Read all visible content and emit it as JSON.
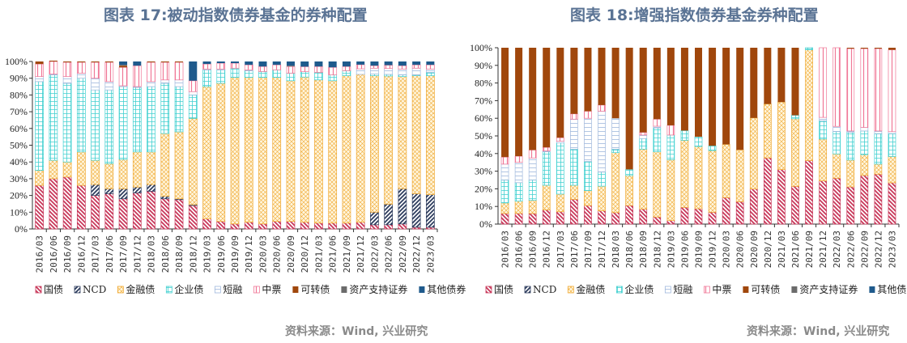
{
  "chart_data": [
    {
      "type": "bar",
      "stacked": true,
      "title": "图表 17:被动指数债券基金的券种配置",
      "source": "资料来源：Wind, 兴业研究",
      "ylim": [
        0,
        100
      ],
      "yticks": [
        "0%",
        "10%",
        "20%",
        "30%",
        "40%",
        "50%",
        "60%",
        "70%",
        "80%",
        "90%",
        "100%"
      ],
      "legend_position": "bottom",
      "categories": [
        "2016/03",
        "2016/06",
        "2016/09",
        "2016/12",
        "2017/03",
        "2017/06",
        "2017/09",
        "2017/12",
        "2018/03",
        "2018/06",
        "2018/09",
        "2018/12",
        "2019/03",
        "2019/06",
        "2019/09",
        "2019/12",
        "2020/03",
        "2020/06",
        "2020/09",
        "2020/12",
        "2021/03",
        "2021/06",
        "2021/09",
        "2021/12",
        "2022/03",
        "2022/06",
        "2022/09",
        "2022/12",
        "2023/03"
      ],
      "series": [
        {
          "name": "国债",
          "values": [
            26,
            30,
            31,
            26,
            20,
            21,
            18,
            21.5,
            22.5,
            18,
            17.5,
            14,
            6,
            4.5,
            3,
            4,
            3,
            4.5,
            4.5,
            4,
            3.5,
            3.5,
            3.5,
            4,
            2.5,
            2.5,
            3,
            1,
            1
          ]
        },
        {
          "name": "NCD",
          "values": [
            0,
            0,
            0,
            0,
            6.5,
            3,
            6,
            3.5,
            4,
            1.5,
            0.5,
            0.5,
            0,
            0,
            0,
            0,
            0,
            0,
            0,
            0,
            0,
            0,
            0,
            0,
            7.5,
            12.3,
            21,
            20,
            19.5
          ]
        },
        {
          "name": "金融债",
          "values": [
            9,
            11,
            9,
            20,
            14.5,
            15,
            17.5,
            21,
            19.5,
            37.5,
            40,
            51.5,
            79,
            82.5,
            87.5,
            86.5,
            87.5,
            86,
            84,
            86.7,
            85.5,
            85,
            88,
            88.3,
            81.5,
            76.5,
            67,
            70.5,
            71
          ]
        },
        {
          "name": "企业债",
          "values": [
            53,
            51,
            47,
            44,
            42,
            44,
            43.5,
            38.5,
            39,
            30,
            27,
            14,
            10,
            8,
            5.5,
            4,
            3.5,
            4.5,
            4.5,
            3.2,
            4.5,
            3.5,
            3,
            0,
            1,
            1,
            1,
            0.5,
            2
          ]
        },
        {
          "name": "短融",
          "values": [
            3,
            0.5,
            4,
            3,
            7,
            5,
            0.5,
            0.5,
            3,
            2,
            4,
            2,
            0.5,
            0.5,
            0,
            0.5,
            0,
            0,
            0,
            0,
            0,
            0,
            0,
            3.3,
            3.5,
            3.5,
            3.5,
            4,
            2
          ]
        },
        {
          "name": "中票",
          "values": [
            7.5,
            7.5,
            8.5,
            6.5,
            9.5,
            11.5,
            11,
            12.5,
            11.5,
            10.5,
            10.5,
            6.5,
            3,
            3.5,
            3,
            3,
            3,
            3,
            4,
            3,
            3.5,
            4.5,
            2.5,
            2.5,
            1.5,
            2,
            2,
            2,
            2.5
          ]
        },
        {
          "name": "可转债",
          "values": [
            1.5,
            0.5,
            0.5,
            0.5,
            0.5,
            0.5,
            1,
            0,
            0.5,
            0.5,
            0.5,
            0,
            0,
            0,
            0,
            0,
            0,
            0,
            0,
            0,
            0,
            0,
            0,
            0,
            0,
            0,
            0,
            0,
            0
          ]
        },
        {
          "name": "资产支持证券",
          "values": [
            0,
            0,
            0,
            0,
            0,
            0,
            0.5,
            0,
            0,
            0,
            0,
            0,
            0,
            0,
            0,
            0,
            0,
            0,
            0.5,
            0,
            0,
            0,
            0,
            0,
            0,
            0,
            0,
            0,
            0
          ]
        },
        {
          "name": "其他债券",
          "values": [
            0,
            0,
            0,
            0,
            0,
            0,
            2,
            2.5,
            0,
            0,
            0,
            11.5,
            1.5,
            1,
            1,
            2,
            3,
            2,
            2.5,
            3.1,
            3,
            3.5,
            3,
            1.9,
            2.5,
            2.2,
            2.5,
            2,
            2
          ]
        }
      ]
    },
    {
      "type": "bar",
      "stacked": true,
      "title": "图表 18:增强指数债券基金券种配置",
      "source": "资料来源：Wind, 兴业研究",
      "ylim": [
        0,
        100
      ],
      "yticks": [
        "0%",
        "10%",
        "20%",
        "30%",
        "40%",
        "50%",
        "60%",
        "70%",
        "80%",
        "90%",
        "100%"
      ],
      "legend_position": "bottom",
      "categories": [
        "2016/03",
        "2016/06",
        "2016/09",
        "2016/12",
        "2017/03",
        "2017/06",
        "2017/09",
        "2017/12",
        "2018/03",
        "2018/06",
        "2018/09",
        "2018/12",
        "2019/03",
        "2019/06",
        "2019/09",
        "2019/12",
        "2020/03",
        "2020/06",
        "2020/09",
        "2020/12",
        "2021/03",
        "2021/06",
        "2021/09",
        "2021/12",
        "2022/03",
        "2022/06",
        "2022/09",
        "2022/12",
        "2023/03"
      ],
      "series": [
        {
          "name": "国债",
          "values": [
            6,
            6,
            6,
            8,
            7,
            14,
            10.5,
            7.5,
            6.5,
            10.5,
            8.5,
            4,
            2,
            9.5,
            8.7,
            6.7,
            15,
            12.7,
            19.9,
            37.5,
            30.9,
            21.4,
            36,
            24.5,
            26,
            21.1,
            27.6,
            28.3,
            23.4
          ]
        },
        {
          "name": "NCD",
          "values": [
            0,
            0,
            0,
            0,
            0,
            0,
            0,
            0,
            0,
            0,
            0,
            0,
            0,
            0,
            0,
            0,
            0,
            0,
            0,
            0,
            0,
            0,
            0,
            0,
            0,
            0,
            0,
            0,
            0
          ]
        },
        {
          "name": "金融债",
          "values": [
            6,
            7,
            7.5,
            14,
            10,
            8,
            8.5,
            14,
            34,
            17,
            34,
            37,
            34.5,
            38,
            35.3,
            35,
            30.2,
            29.4,
            40.3,
            30.6,
            38.3,
            38.3,
            62.8,
            23.7,
            13.8,
            15.2,
            11.8,
            5.7,
            14.9
          ]
        },
        {
          "name": "企业债",
          "values": [
            13,
            10.5,
            11.5,
            19,
            29,
            20.5,
            16.5,
            8,
            2,
            3.5,
            6,
            13.5,
            14,
            5.5,
            5.5,
            2.7,
            0,
            0,
            0,
            0,
            0,
            2,
            1.2,
            10.4,
            12.7,
            15.7,
            13.4,
            17.3,
            13
          ]
        },
        {
          "name": "短融",
          "values": [
            9,
            11.5,
            12.5,
            0.5,
            1,
            17,
            24.5,
            34.5,
            17.5,
            0,
            2,
            1,
            0,
            0,
            0,
            0,
            0,
            0,
            0,
            0,
            0,
            0,
            0,
            1.9,
            2.9,
            0.8,
            2,
            1.5,
            1.1
          ]
        },
        {
          "name": "中票",
          "values": [
            4,
            3.5,
            4.5,
            2,
            2,
            3,
            4,
            3.5,
            0,
            0,
            1.5,
            4,
            5.5,
            0,
            0,
            0,
            0,
            0,
            0,
            0,
            0,
            0,
            0,
            39.5,
            44.6,
            46.7,
            44.7,
            46.7,
            46.4
          ]
        },
        {
          "name": "可转债",
          "values": [
            62,
            61.5,
            58,
            56.5,
            51,
            37.5,
            36,
            32.5,
            40,
            69,
            48,
            40.5,
            44,
            47,
            50.5,
            55.6,
            54.8,
            57.9,
            39.8,
            31.9,
            30.8,
            38.3,
            0,
            0,
            0,
            0.5,
            0.5,
            0.5,
            1.2
          ]
        },
        {
          "name": "资产支持证券",
          "values": [
            0,
            0,
            0,
            0,
            0,
            0,
            0,
            0,
            0,
            0,
            0,
            0,
            0,
            0,
            0,
            0,
            0,
            0,
            0,
            0,
            0,
            0,
            0,
            0,
            0,
            0,
            0,
            0,
            0
          ]
        },
        {
          "name": "其他债券",
          "values": [
            0,
            0,
            0,
            0,
            0,
            0,
            0,
            0,
            0,
            0,
            0,
            0,
            0,
            0,
            0,
            0,
            0,
            0,
            0,
            0,
            0,
            0,
            0,
            0,
            0,
            0,
            0,
            0,
            0
          ]
        }
      ]
    }
  ],
  "series_style": [
    {
      "pattern": "diag-back",
      "color": "#c8385a"
    },
    {
      "pattern": "diag-fwd",
      "color": "#2e3d5e"
    },
    {
      "pattern": "cross",
      "color": "#f0a830"
    },
    {
      "pattern": "grid",
      "color": "#3fd0d0"
    },
    {
      "pattern": "hlines",
      "color": "#9fb8dc"
    },
    {
      "pattern": "vlines",
      "color": "#f07898"
    },
    {
      "pattern": "solid",
      "color": "#a0470c"
    },
    {
      "pattern": "solid",
      "color": "#6b6b6b"
    },
    {
      "pattern": "solid",
      "color": "#1f5a8c"
    }
  ]
}
